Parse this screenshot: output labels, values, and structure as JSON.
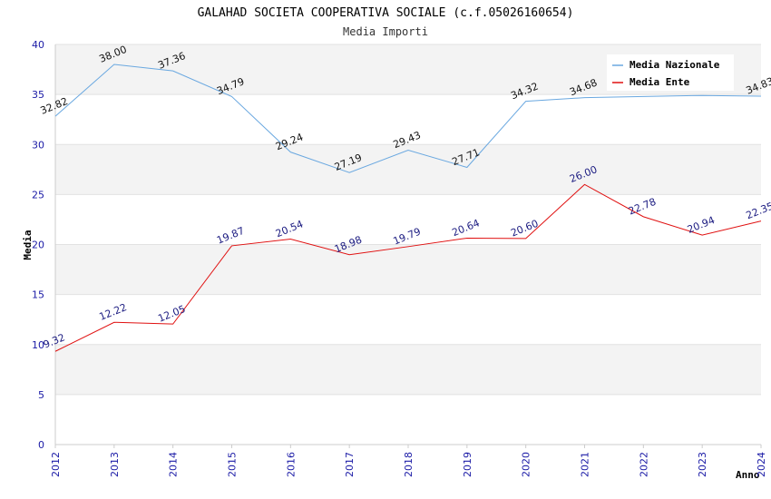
{
  "chart_data": {
    "type": "line",
    "title": "GALAHAD SOCIETA COOPERATIVA SOCIALE (c.f.05026160654)",
    "subtitle": "Media Importi",
    "xlabel": "Anno",
    "ylabel": "Media",
    "x": [
      "2012",
      "2013",
      "2014",
      "2015",
      "2016",
      "2017",
      "2018",
      "2019",
      "2020",
      "2021",
      "2022",
      "2023",
      "2024"
    ],
    "ylim": [
      0,
      40
    ],
    "yticks": [
      0,
      5,
      10,
      15,
      20,
      25,
      30,
      35,
      40
    ],
    "grid": true,
    "legend_position": "top-right",
    "series": [
      {
        "name": "Media Nazionale",
        "color": "#6aa8e0",
        "values": [
          32.82,
          38.0,
          37.36,
          34.79,
          29.24,
          27.19,
          29.43,
          27.71,
          34.32,
          34.68,
          null,
          null,
          34.83
        ],
        "labels": [
          "32.82",
          "38.00",
          "37.36",
          "34.79",
          "29.24",
          "27.19",
          "29.43",
          "27.71",
          "34.32",
          "34.68",
          "",
          "",
          "34.83"
        ],
        "approx_values": [
          32.82,
          38.0,
          37.36,
          34.79,
          29.24,
          27.19,
          29.43,
          27.71,
          34.32,
          34.68,
          34.8,
          34.9,
          34.83
        ]
      },
      {
        "name": "Media Ente",
        "color": "#e01010",
        "values": [
          9.32,
          12.22,
          12.05,
          19.87,
          20.54,
          18.98,
          19.79,
          20.64,
          20.6,
          26.0,
          22.78,
          20.94,
          22.35
        ],
        "labels": [
          "9.32",
          "12.22",
          "12.05",
          "19.87",
          "20.54",
          "18.98",
          "19.79",
          "20.64",
          "20.60",
          "26.00",
          "22.78",
          "20.94",
          "22.35"
        ]
      }
    ]
  }
}
